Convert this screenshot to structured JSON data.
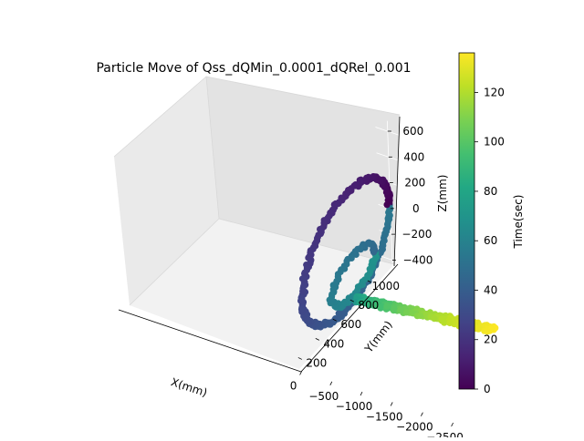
{
  "chart_data": {
    "type": "scatter",
    "projection": "3d",
    "title": "Particle Move of  Qss_dQMin_0.0001_dQRel_0.001",
    "xlabel": "X(mm)",
    "ylabel": "Y(mm)",
    "zlabel": "Z(mm)",
    "xlim": [
      -2800,
      200
    ],
    "ylim": [
      100,
      1150
    ],
    "zlim": [
      -480,
      680
    ],
    "xticks": [
      -2500,
      -2000,
      -1500,
      -1000,
      -500,
      0
    ],
    "xtick_labels": [
      "−2500",
      "−2000",
      "−1500",
      "−1000",
      "−500",
      "0"
    ],
    "yticks": [
      200,
      400,
      600,
      800,
      1000
    ],
    "ytick_labels": [
      "200",
      "400",
      "600",
      "800",
      "1000"
    ],
    "zticks": [
      -400,
      -200,
      0,
      200,
      400,
      600
    ],
    "ztick_labels": [
      "−400",
      "−200",
      "0",
      "200",
      "400",
      "600"
    ],
    "colormap": "viridis",
    "colorbar": {
      "label": "Time(sec)",
      "range": [
        0,
        136
      ],
      "ticks": [
        0,
        20,
        40,
        60,
        80,
        100,
        120
      ],
      "tick_labels": [
        "0",
        "20",
        "40",
        "60",
        "80",
        "100",
        "120"
      ]
    },
    "grid": true,
    "series": [
      {
        "type": "ring",
        "center": [
          0,
          640,
          45
        ],
        "radius": [
          500,
          430
        ],
        "time_range": [
          0,
          55
        ]
      },
      {
        "type": "inner-ring",
        "center": [
          -200,
          580,
          -60
        ],
        "radius": [
          250,
          150
        ],
        "time_range": [
          45,
          70
        ]
      },
      {
        "type": "line-drift",
        "x": [
          -300,
          -2750
        ],
        "y": [
          520,
          420
        ],
        "z": [
          -180,
          40
        ],
        "time_range": [
          70,
          136
        ]
      }
    ]
  }
}
